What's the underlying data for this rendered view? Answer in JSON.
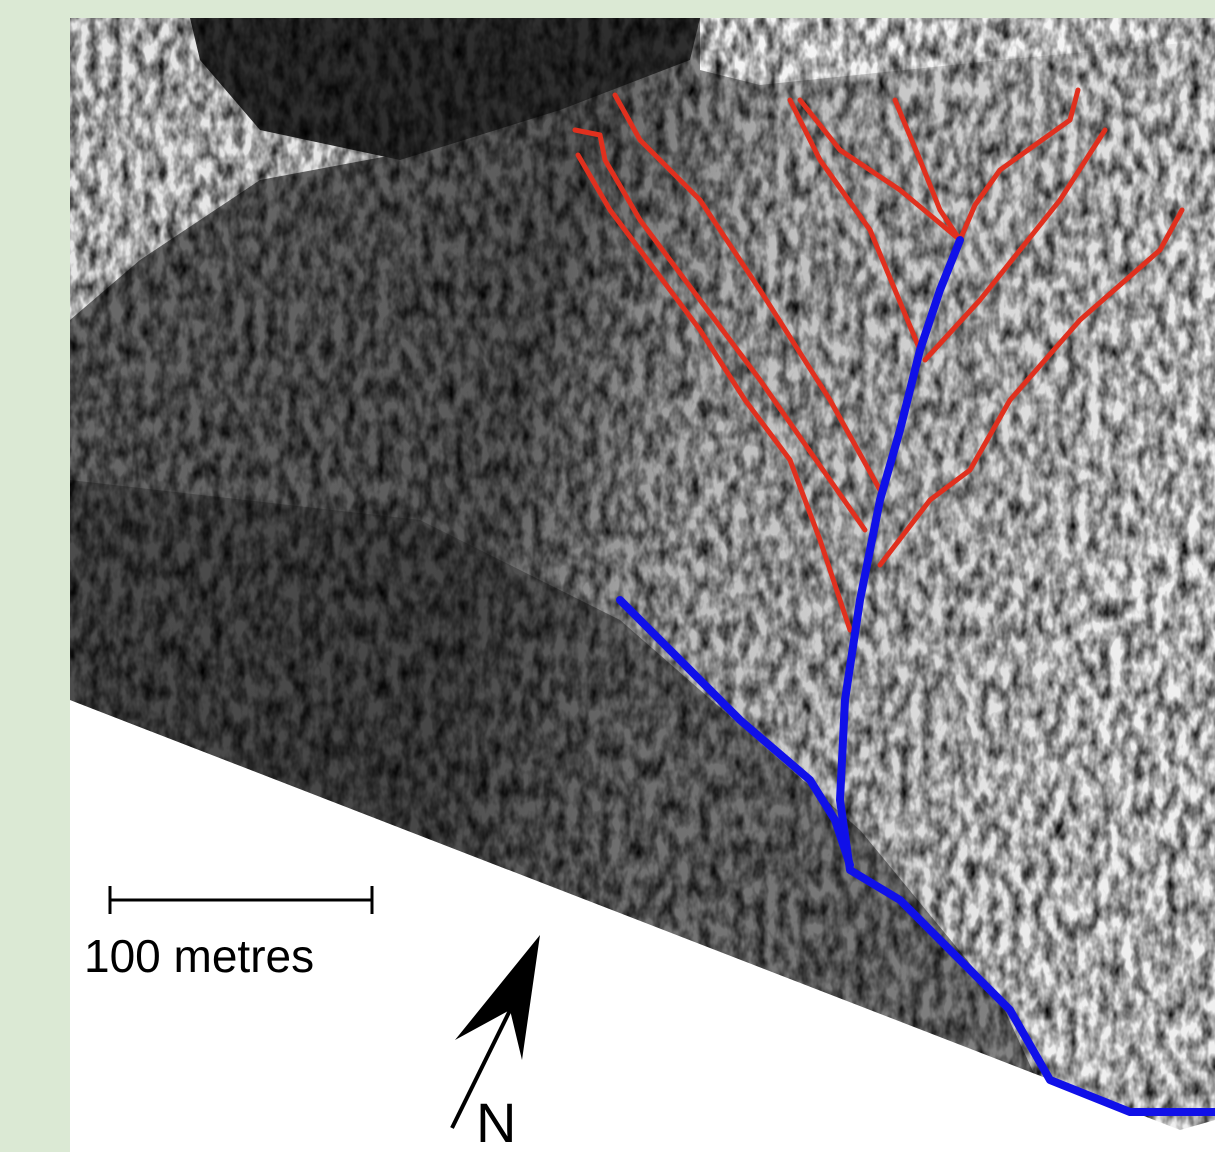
{
  "scale_bar": {
    "label": "100 metres"
  },
  "north_arrow": {
    "label": "N"
  }
}
